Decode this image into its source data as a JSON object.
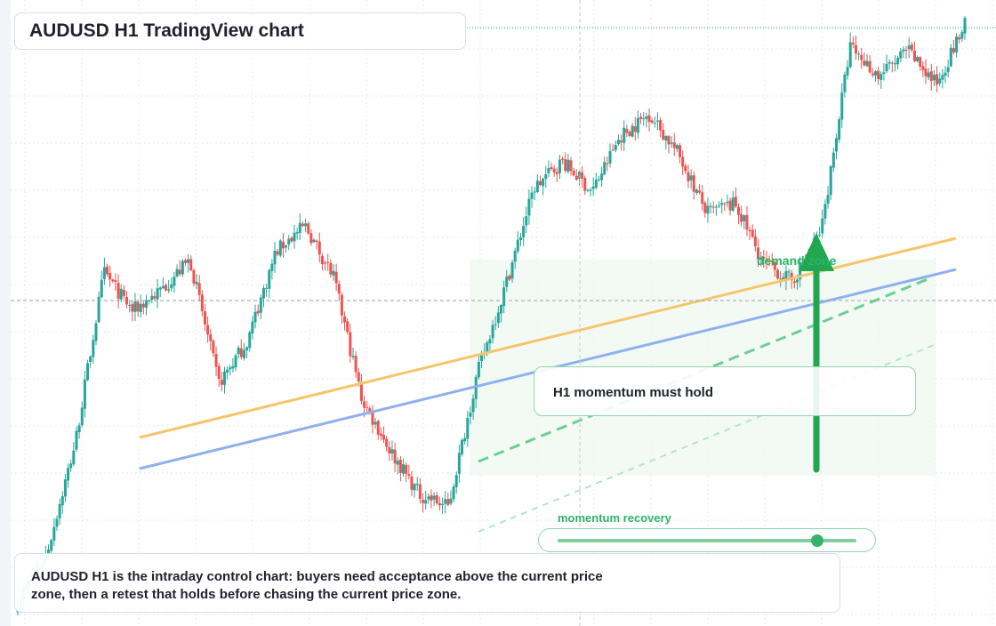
{
  "title": "AUDUSD H1 TradingView chart",
  "annotations": {
    "demand_label": "demand zone",
    "momentum_card": "H1 momentum must hold",
    "slider_label": "momentum recovery"
  },
  "slider": {
    "level": 0.87
  },
  "bottom_note": "AUDUSD H1 is the intraday control chart: buyers need acceptance above the current price zone, then a retest that holds before chasing the current price zone.",
  "colors": {
    "up": "#26a69a",
    "down": "#ef5350",
    "orange_trend": "#f5c56a",
    "blue_trend": "#8fb0ee",
    "green": "#2fb36a"
  },
  "chart_data": {
    "type": "candlestick",
    "symbol": "AUDUSD",
    "timeframe": "H1",
    "close_path": [
      0.05,
      0.16,
      0.42,
      0.82,
      0.73,
      0.78,
      0.85,
      0.56,
      0.66,
      0.87,
      0.93,
      0.81,
      0.52,
      0.4,
      0.3,
      0.27,
      0.58,
      0.79,
      1.02,
      1.08,
      1.01,
      1.14,
      1.19,
      1.1,
      0.96,
      0.98,
      0.84,
      0.8,
      0.92,
      1.35,
      1.28,
      1.34,
      1.26,
      1.4
    ],
    "candle_count": 340
  }
}
